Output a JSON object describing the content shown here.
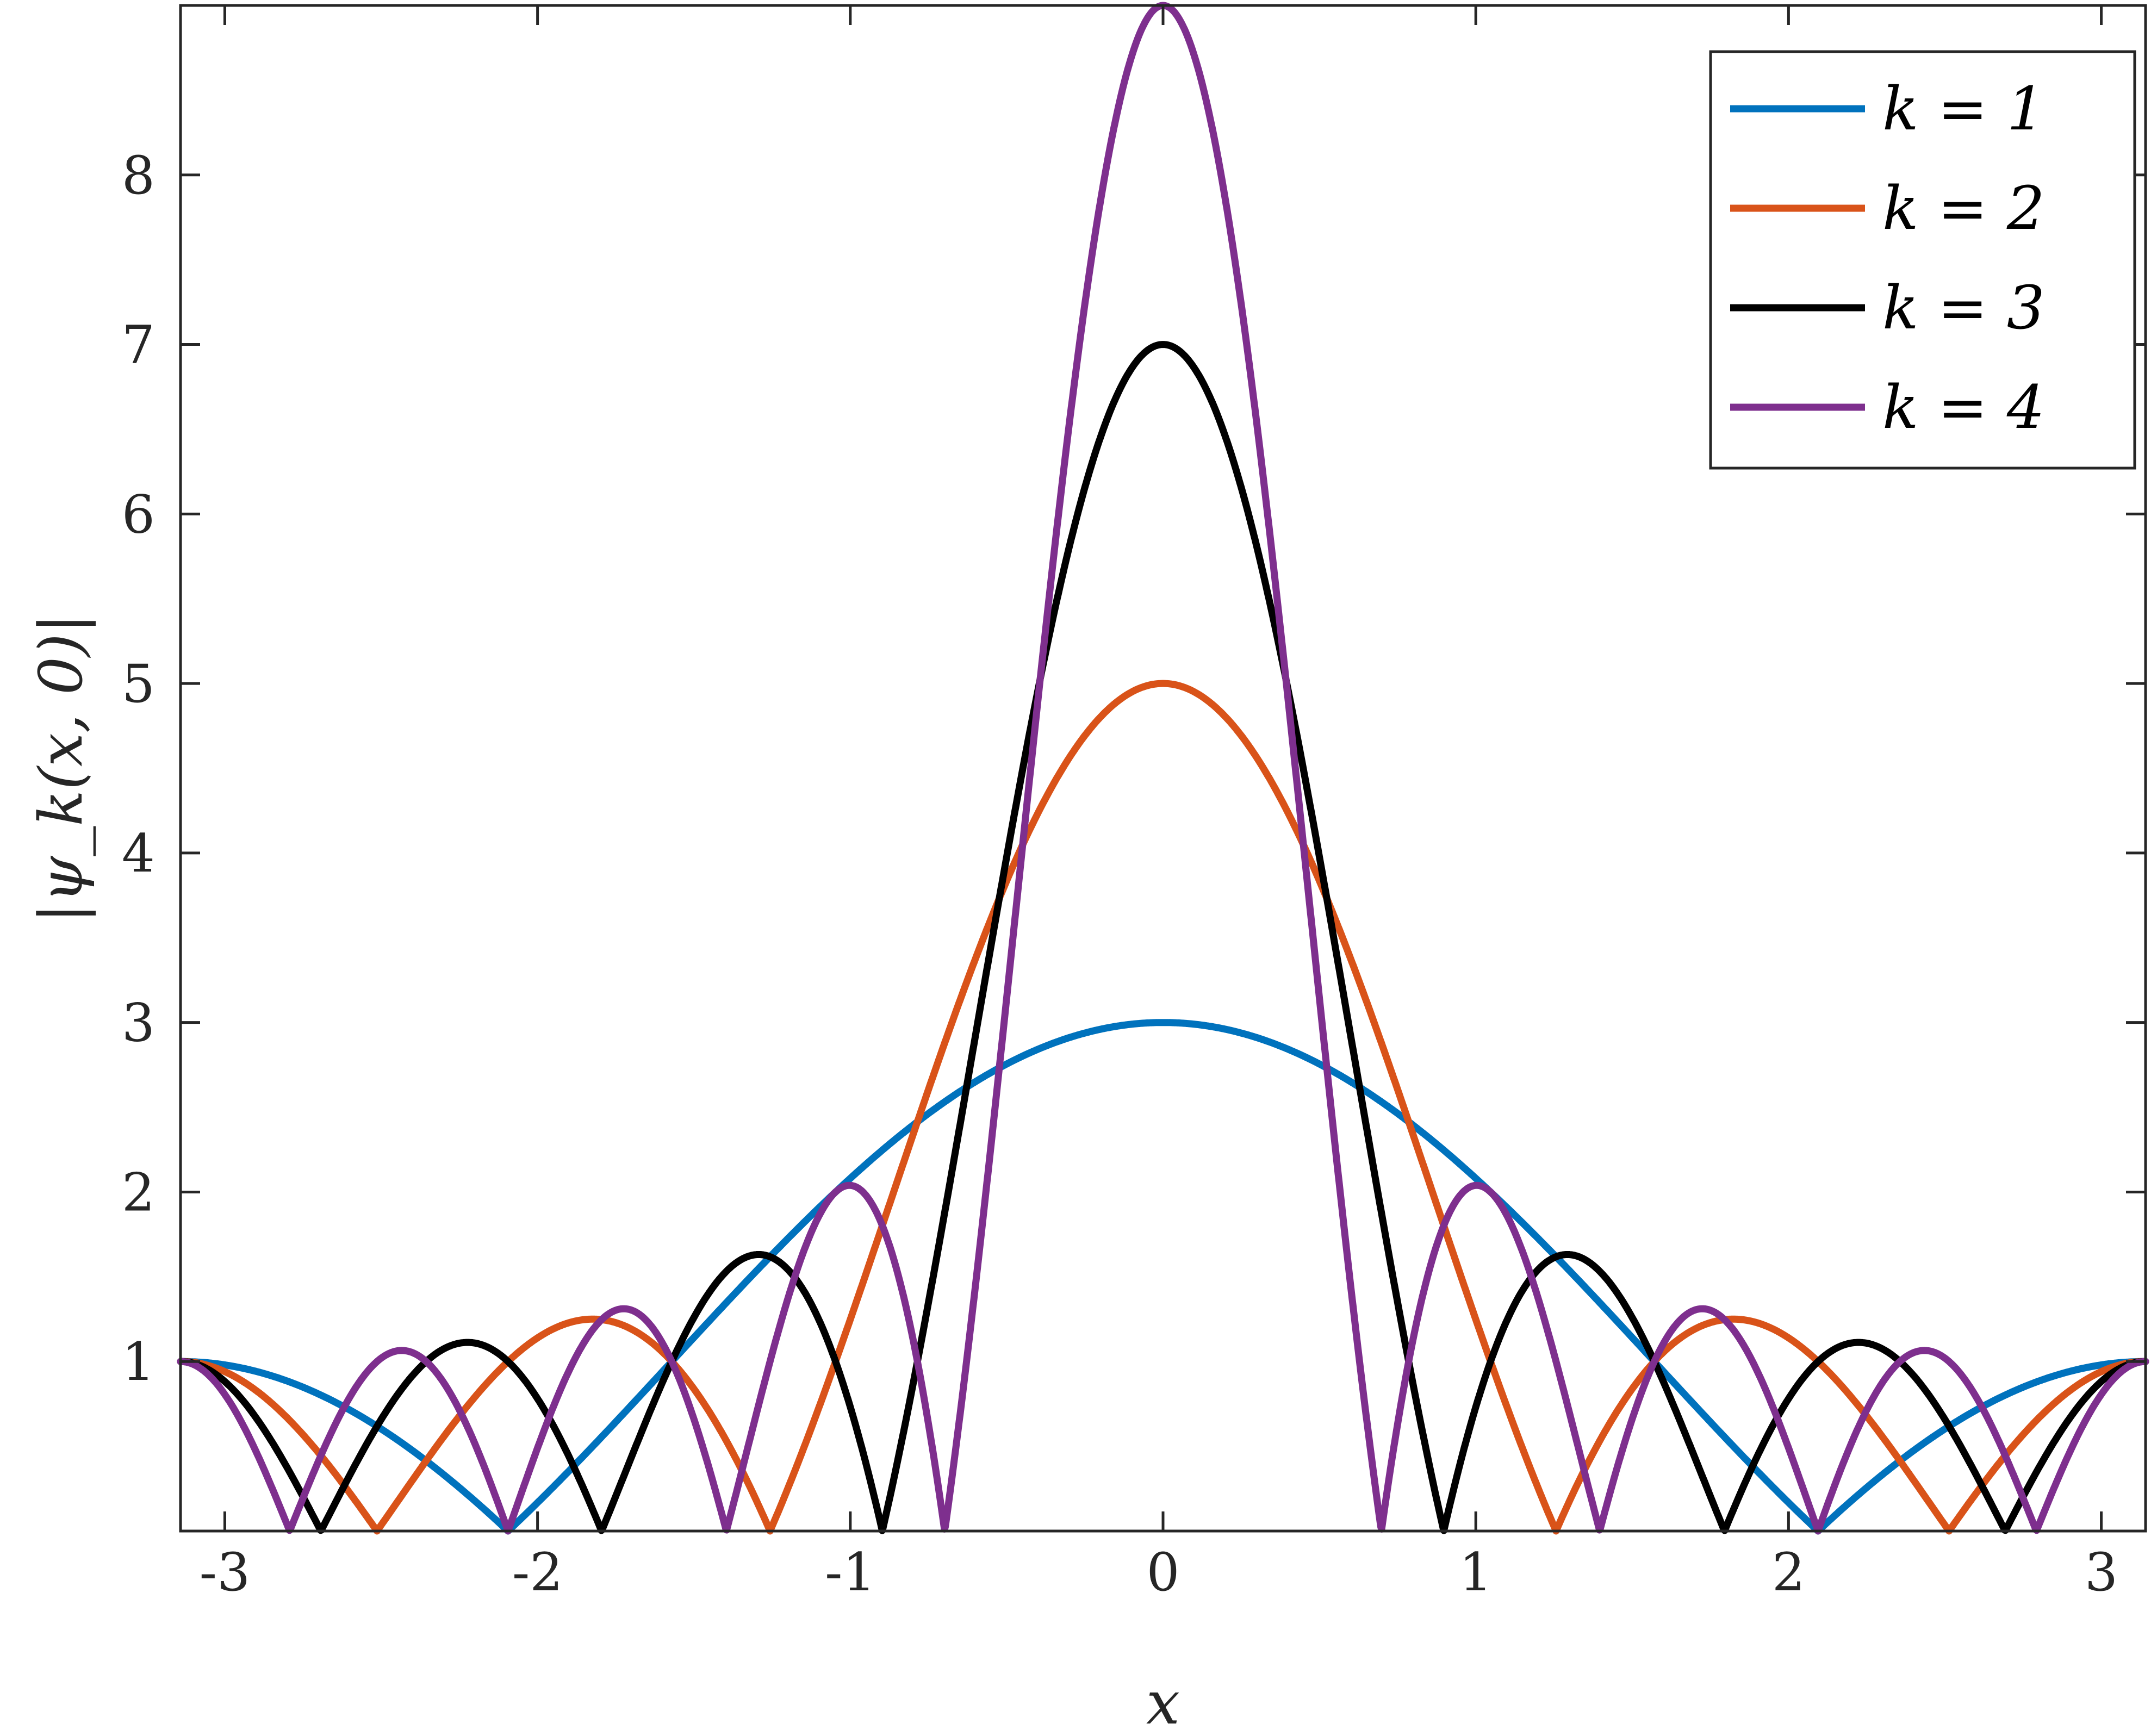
{
  "chart_data": {
    "type": "line",
    "xlabel": "x",
    "ylabel": "|ψ_k(x, 0)|",
    "xlim": [
      -3.14159,
      3.14159
    ],
    "ylim": [
      0,
      9
    ],
    "xticks": [
      "-3",
      "-2",
      "-1",
      "0",
      "1",
      "2",
      "3"
    ],
    "xtick_values": [
      -3,
      -2,
      -1,
      0,
      1,
      2,
      3
    ],
    "yticks": [
      "1",
      "2",
      "3",
      "4",
      "5",
      "6",
      "7",
      "8"
    ],
    "ytick_values": [
      1,
      2,
      3,
      4,
      5,
      6,
      7,
      8
    ],
    "grid": false,
    "legend_position": "top-right",
    "series": [
      {
        "name": "k = 1",
        "k": 1,
        "color": "#0072BD"
      },
      {
        "name": "k = 2",
        "k": 2,
        "color": "#D95319"
      },
      {
        "name": "k = 3",
        "k": 3,
        "color": "#000000"
      },
      {
        "name": "k = 4",
        "k": 4,
        "color": "#7E2F8E"
      }
    ],
    "function": "|sin((2k+1)x/2) / sin(x/2)|",
    "peak_values": [
      3,
      5,
      7,
      9
    ]
  }
}
